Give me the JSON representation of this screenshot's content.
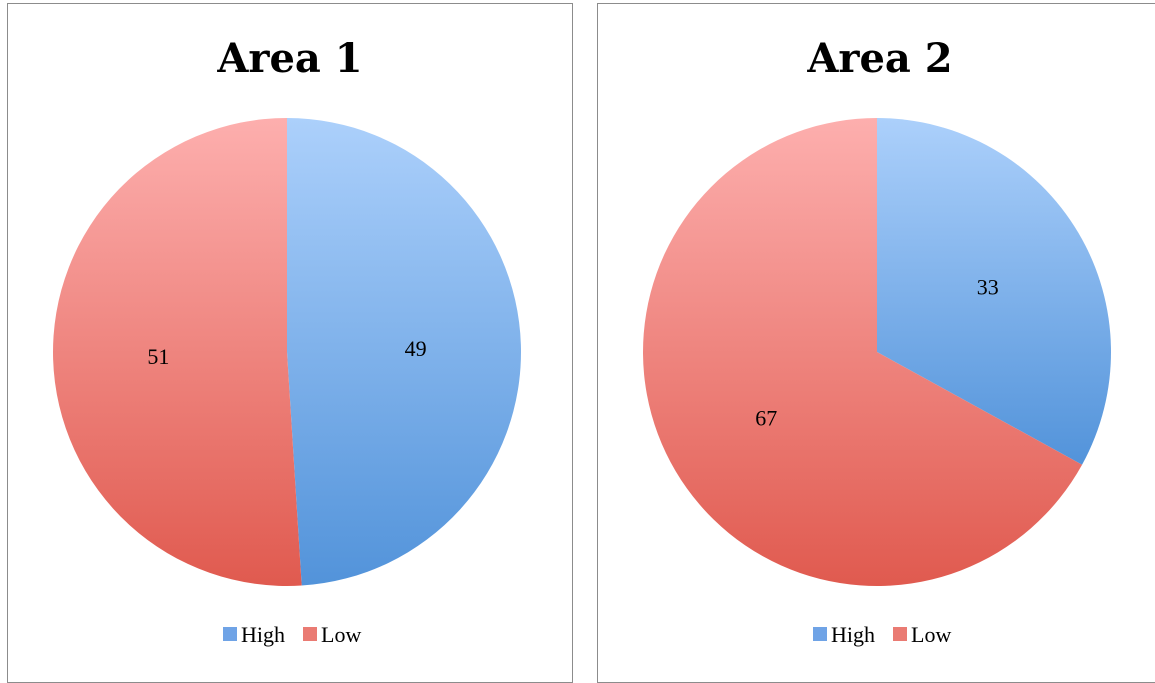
{
  "chart_data": [
    {
      "type": "pie",
      "title": "Area 1",
      "categories": [
        "High",
        "Low"
      ],
      "values": [
        49,
        51
      ],
      "colors": [
        "#6fa3e6",
        "#ea7b73"
      ],
      "gradients": [
        [
          "#acd0fb",
          "#5293da"
        ],
        [
          "#fdafae",
          "#e05a4f"
        ]
      ],
      "legend": "bottom"
    },
    {
      "type": "pie",
      "title": "Area 2",
      "categories": [
        "High",
        "Low"
      ],
      "values": [
        33,
        67
      ],
      "colors": [
        "#6fa3e6",
        "#ea7b73"
      ],
      "gradients": [
        [
          "#acd0fb",
          "#5293da"
        ],
        [
          "#fdafae",
          "#e05a4f"
        ]
      ],
      "legend": "bottom"
    }
  ]
}
